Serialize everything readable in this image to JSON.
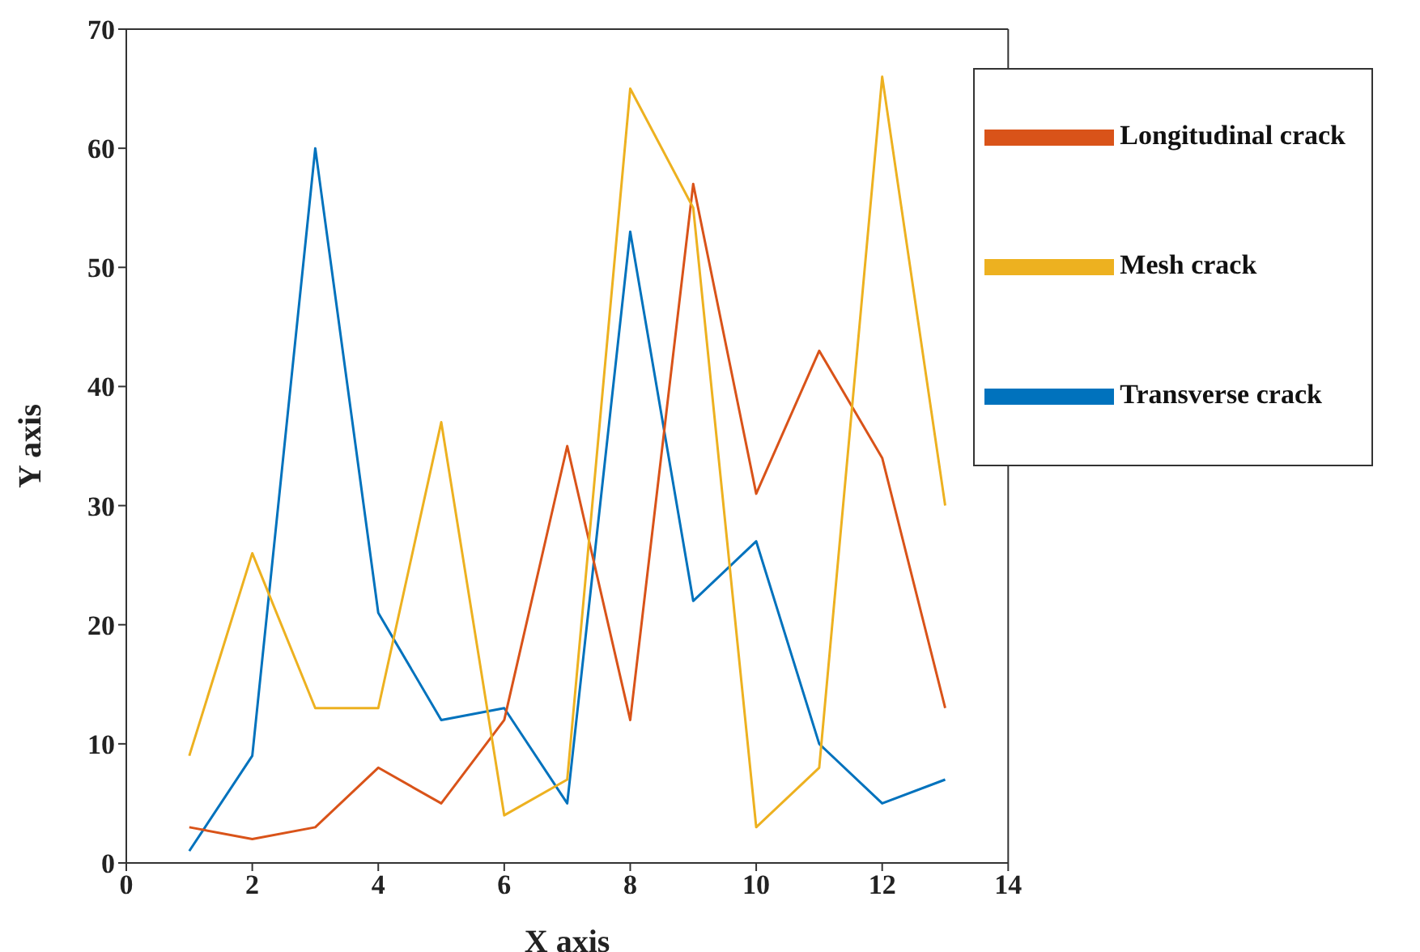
{
  "chart_data": {
    "type": "line",
    "xlabel": "X axis",
    "ylabel": "Y axis",
    "x": [
      1,
      2,
      3,
      4,
      5,
      6,
      7,
      8,
      9,
      10,
      11,
      12,
      13
    ],
    "series": [
      {
        "name": "Transverse crack",
        "color": "#0072bd",
        "values": [
          1,
          9,
          60,
          21,
          12,
          13,
          5,
          53,
          22,
          27,
          10,
          5,
          7
        ]
      },
      {
        "name": "Longitudinal crack",
        "color": "#d95319",
        "values": [
          3,
          2,
          3,
          8,
          5,
          12,
          35,
          12,
          57,
          31,
          43,
          34,
          13
        ]
      },
      {
        "name": "Mesh crack",
        "color": "#edb120",
        "values": [
          9,
          26,
          13,
          13,
          37,
          4,
          7,
          65,
          55,
          3,
          8,
          66,
          30
        ]
      }
    ],
    "xlim": [
      0,
      14
    ],
    "xticks": [
      0,
      2,
      4,
      6,
      8,
      10,
      12,
      14
    ],
    "ylim": [
      0,
      70
    ],
    "yticks": [
      0,
      10,
      20,
      30,
      40,
      50,
      60,
      70
    ],
    "grid": false,
    "legend": "top right",
    "marker": "none",
    "line_style": "solid"
  }
}
